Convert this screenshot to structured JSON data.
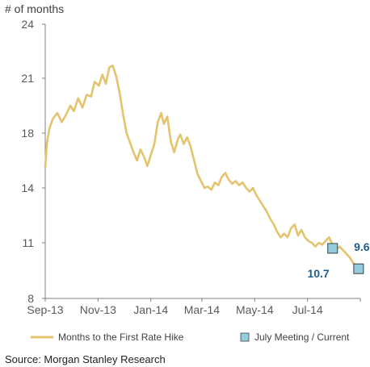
{
  "chart_data": {
    "type": "line",
    "ylabel": "# of months",
    "yticks": [
      8,
      11,
      14,
      18,
      21,
      24
    ],
    "ylim": [
      8,
      24
    ],
    "xticks": [
      "Sep-13",
      "Nov-13",
      "Jan-14",
      "Mar-14",
      "May-14",
      "Jul-14"
    ],
    "xlim": [
      "2013-09-01",
      "2014-08-31"
    ],
    "grid": false,
    "legend_position": "bottom",
    "series": [
      {
        "name": "Months to the First Rate Hike",
        "color": "#E3C36E",
        "points": [
          [
            "2013-09-01",
            15.5
          ],
          [
            "2013-09-03",
            17.3
          ],
          [
            "2013-09-06",
            18.3
          ],
          [
            "2013-09-10",
            18.8
          ],
          [
            "2013-09-15",
            19.1
          ],
          [
            "2013-09-20",
            18.6
          ],
          [
            "2013-09-25",
            19.0
          ],
          [
            "2013-09-30",
            19.5
          ],
          [
            "2013-10-04",
            19.2
          ],
          [
            "2013-10-09",
            19.9
          ],
          [
            "2013-10-14",
            19.4
          ],
          [
            "2013-10-19",
            20.1
          ],
          [
            "2013-10-24",
            20.0
          ],
          [
            "2013-10-28",
            20.8
          ],
          [
            "2013-11-02",
            20.6
          ],
          [
            "2013-11-06",
            21.2
          ],
          [
            "2013-11-10",
            20.7
          ],
          [
            "2013-11-14",
            21.6
          ],
          [
            "2013-11-18",
            21.7
          ],
          [
            "2013-11-22",
            21.1
          ],
          [
            "2013-11-26",
            20.2
          ],
          [
            "2013-11-30",
            19.0
          ],
          [
            "2013-12-04",
            18.0
          ],
          [
            "2013-12-08",
            17.3
          ],
          [
            "2013-12-12",
            16.6
          ],
          [
            "2013-12-16",
            16.0
          ],
          [
            "2013-12-20",
            16.8
          ],
          [
            "2013-12-24",
            16.3
          ],
          [
            "2013-12-28",
            15.6
          ],
          [
            "2014-01-01",
            16.4
          ],
          [
            "2014-01-05",
            17.2
          ],
          [
            "2014-01-09",
            18.6
          ],
          [
            "2014-01-13",
            19.1
          ],
          [
            "2014-01-16",
            18.5
          ],
          [
            "2014-01-20",
            18.9
          ],
          [
            "2014-01-24",
            17.4
          ],
          [
            "2014-01-28",
            16.6
          ],
          [
            "2014-02-01",
            17.5
          ],
          [
            "2014-02-04",
            17.9
          ],
          [
            "2014-02-08",
            17.2
          ],
          [
            "2014-02-12",
            17.7
          ],
          [
            "2014-02-16",
            17.0
          ],
          [
            "2014-02-20",
            16.0
          ],
          [
            "2014-02-24",
            15.0
          ],
          [
            "2014-02-28",
            14.5
          ],
          [
            "2014-03-04",
            14.0
          ],
          [
            "2014-03-08",
            14.1
          ],
          [
            "2014-03-12",
            13.9
          ],
          [
            "2014-03-16",
            14.4
          ],
          [
            "2014-03-20",
            14.2
          ],
          [
            "2014-03-24",
            14.8
          ],
          [
            "2014-03-28",
            15.1
          ],
          [
            "2014-04-01",
            14.6
          ],
          [
            "2014-04-05",
            14.3
          ],
          [
            "2014-04-09",
            14.5
          ],
          [
            "2014-04-13",
            14.2
          ],
          [
            "2014-04-17",
            14.4
          ],
          [
            "2014-04-21",
            14.0
          ],
          [
            "2014-04-25",
            13.8
          ],
          [
            "2014-04-29",
            14.0
          ],
          [
            "2014-05-03",
            13.6
          ],
          [
            "2014-05-07",
            13.3
          ],
          [
            "2014-05-11",
            13.0
          ],
          [
            "2014-05-15",
            12.7
          ],
          [
            "2014-05-19",
            12.3
          ],
          [
            "2014-05-23",
            12.0
          ],
          [
            "2014-05-27",
            11.6
          ],
          [
            "2014-05-31",
            11.3
          ],
          [
            "2014-06-04",
            11.5
          ],
          [
            "2014-06-08",
            11.3
          ],
          [
            "2014-06-12",
            11.8
          ],
          [
            "2014-06-16",
            12.0
          ],
          [
            "2014-06-20",
            11.4
          ],
          [
            "2014-06-24",
            11.7
          ],
          [
            "2014-06-28",
            11.3
          ],
          [
            "2014-07-02",
            11.1
          ],
          [
            "2014-07-06",
            11.0
          ],
          [
            "2014-07-10",
            10.8
          ],
          [
            "2014-07-14",
            11.0
          ],
          [
            "2014-07-18",
            10.9
          ],
          [
            "2014-07-22",
            11.1
          ],
          [
            "2014-07-26",
            11.3
          ],
          [
            "2014-07-30",
            10.9
          ],
          [
            "2014-08-03",
            10.6
          ],
          [
            "2014-08-07",
            10.8
          ],
          [
            "2014-08-11",
            10.6
          ],
          [
            "2014-08-15",
            10.4
          ],
          [
            "2014-08-19",
            10.2
          ],
          [
            "2014-08-23",
            9.9
          ],
          [
            "2014-08-26",
            9.8
          ]
        ]
      },
      {
        "name": "July Meeting / Current",
        "color": "#93CDDD",
        "marker": "square",
        "points": [
          [
            "2014-07-30",
            10.7
          ],
          [
            "2014-08-29",
            9.6
          ]
        ]
      }
    ],
    "annotations": [
      {
        "text": "10.7",
        "color": "#1F5C8B"
      },
      {
        "text": "9.6",
        "color": "#1F5C8B"
      }
    ]
  },
  "source": "Source: Morgan Stanley Research"
}
